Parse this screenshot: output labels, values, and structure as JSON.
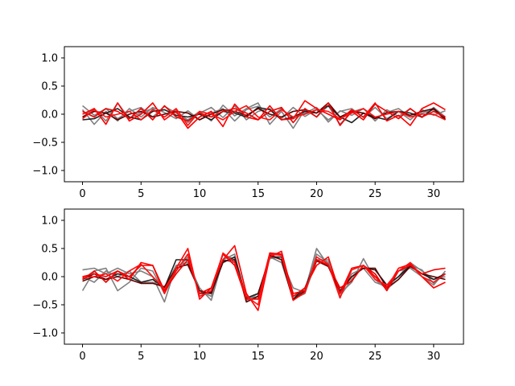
{
  "chart_data": [
    {
      "type": "line",
      "xlabel": "",
      "ylabel": "",
      "xlim": [
        -1.55,
        32.55
      ],
      "ylim": [
        -1.2,
        1.2
      ],
      "xticks": [
        0,
        5,
        10,
        15,
        20,
        25,
        30
      ],
      "yticks": [
        -1.0,
        -0.5,
        0.0,
        0.5,
        1.0
      ],
      "xtick_labels": [
        "0",
        "5",
        "10",
        "15",
        "20",
        "25",
        "30"
      ],
      "ytick_labels": [
        "−1.0",
        "−0.5",
        "0.0",
        "0.5",
        "1.0"
      ],
      "grid": false,
      "legend": "none",
      "x": [
        0,
        1,
        2,
        3,
        4,
        5,
        6,
        7,
        8,
        9,
        10,
        11,
        12,
        13,
        14,
        15,
        16,
        17,
        18,
        19,
        20,
        21,
        22,
        23,
        24,
        25,
        26,
        27,
        28,
        29,
        30,
        31
      ],
      "series": [
        {
          "color": "#808080",
          "values": [
            0.15,
            -0.02,
            0.1,
            -0.08,
            0.05,
            0.12,
            -0.05,
            0.14,
            0.02,
            -0.1,
            0.05,
            -0.12,
            0.16,
            -0.03,
            0.1,
            0.2,
            -0.18,
            0.05,
            -0.25,
            0.08,
            -0.05,
            0.15,
            -0.18,
            0.04,
            0.1,
            -0.12,
            0.08,
            -0.04,
            0.1,
            -0.06,
            0.12,
            -0.05
          ]
        },
        {
          "color": "#808080",
          "values": [
            -0.05,
            0.1,
            -0.12,
            0.2,
            -0.08,
            0.03,
            0.1,
            -0.05,
            0.08,
            -0.15,
            0.02,
            0.12,
            -0.06,
            0.15,
            -0.1,
            0.05,
            0.1,
            -0.08,
            0.12,
            -0.04,
            0.08,
            -0.1,
            0.05,
            0.1,
            -0.06,
            0.12,
            -0.08,
            0.05,
            -0.1,
            0.08,
            -0.02,
            0.06
          ]
        },
        {
          "color": "#808080",
          "values": [
            0.08,
            -0.18,
            0.05,
            -0.12,
            0.1,
            -0.05,
            0.12,
            0.03,
            -0.08,
            0.06,
            -0.1,
            0.02,
            0.1,
            -0.12,
            0.08,
            0.14,
            -0.05,
            0.1,
            -0.08,
            0.02,
            0.12,
            -0.14,
            0.06,
            -0.02,
            0.1,
            -0.08,
            0.03,
            0.1,
            -0.05,
            0.02,
            0.08,
            -0.1
          ]
        },
        {
          "color": "#202020",
          "values": [
            -0.1,
            -0.08,
            0.02,
            0.1,
            -0.05,
            -0.1,
            0.05,
            0.08,
            -0.02,
            -0.05,
            0.0,
            -0.1,
            0.05,
            0.02,
            -0.05,
            0.12,
            0.08,
            -0.1,
            -0.05,
            0.05,
            0.02,
            0.15,
            -0.05,
            -0.15,
            0.02,
            -0.05,
            -0.1,
            0.05,
            0.02,
            -0.05,
            0.1,
            -0.1
          ]
        },
        {
          "color": "#600000",
          "values": [
            -0.05,
            0.05,
            0.02,
            -0.1,
            0.0,
            0.05,
            -0.05,
            0.0,
            0.05,
            0.02,
            -0.1,
            0.0,
            0.08,
            0.05,
            -0.02,
            0.1,
            0.0,
            -0.05,
            0.05,
            0.08,
            0.02,
            0.2,
            -0.05,
            0.05,
            0.02,
            -0.08,
            0.03,
            0.05,
            -0.02,
            0.05,
            0.1,
            -0.08
          ]
        },
        {
          "color": "#ff0000",
          "values": [
            0.0,
            0.1,
            -0.18,
            0.2,
            -0.12,
            0.0,
            0.2,
            -0.1,
            0.05,
            -0.25,
            -0.05,
            0.05,
            -0.22,
            0.18,
            -0.05,
            -0.1,
            0.15,
            -0.1,
            -0.08,
            0.24,
            0.1,
            0.0,
            -0.1,
            0.08,
            -0.05,
            0.2,
            -0.12,
            -0.02,
            -0.2,
            0.1,
            0.2,
            0.08
          ]
        },
        {
          "color": "#ee0000",
          "values": [
            0.05,
            -0.05,
            0.1,
            0.05,
            -0.08,
            0.1,
            -0.1,
            0.15,
            -0.05,
            -0.12,
            0.02,
            -0.05,
            0.05,
            0.1,
            0.02,
            -0.1,
            0.05,
            0.12,
            -0.15,
            0.1,
            -0.05,
            0.2,
            -0.2,
            0.05,
            -0.1,
            0.18,
            0.05,
            -0.08,
            0.1,
            -0.05,
            0.05,
            -0.05
          ]
        },
        {
          "color": "#ff1010",
          "values": [
            -0.08,
            0.08,
            -0.05,
            0.0,
            0.05,
            -0.1,
            0.08,
            -0.05,
            0.1,
            -0.2,
            0.05,
            0.0,
            -0.1,
            0.05,
            0.15,
            -0.05,
            -0.1,
            0.08,
            -0.05,
            0.0,
            0.08,
            0.05,
            -0.08,
            0.02,
            0.1,
            -0.05,
            0.0,
            0.05,
            -0.05,
            0.0,
            0.0,
            -0.1
          ]
        }
      ]
    },
    {
      "type": "line",
      "xlabel": "",
      "ylabel": "",
      "xlim": [
        -1.55,
        32.55
      ],
      "ylim": [
        -1.2,
        1.2
      ],
      "xticks": [
        0,
        5,
        10,
        15,
        20,
        25,
        30
      ],
      "yticks": [
        -1.0,
        -0.5,
        0.0,
        0.5,
        1.0
      ],
      "xtick_labels": [
        "0",
        "5",
        "10",
        "15",
        "20",
        "25",
        "30"
      ],
      "ytick_labels": [
        "−1.0",
        "−0.5",
        "0.0",
        "0.5",
        "1.0"
      ],
      "grid": false,
      "legend": "none",
      "x": [
        0,
        1,
        2,
        3,
        4,
        5,
        6,
        7,
        8,
        9,
        10,
        11,
        12,
        13,
        14,
        15,
        16,
        17,
        18,
        19,
        20,
        21,
        22,
        23,
        24,
        25,
        26,
        27,
        28,
        29,
        30,
        31
      ],
      "series": [
        {
          "color": "#808080",
          "values": [
            0.12,
            0.15,
            0.05,
            0.15,
            0.05,
            0.1,
            0.0,
            -0.45,
            0.2,
            0.25,
            -0.2,
            -0.42,
            0.3,
            0.4,
            -0.42,
            -0.3,
            0.32,
            0.35,
            -0.35,
            -0.25,
            0.5,
            0.2,
            -0.3,
            -0.1,
            0.32,
            -0.05,
            -0.22,
            -0.05,
            0.2,
            0.12,
            -0.12,
            0.05
          ]
        },
        {
          "color": "#808080",
          "values": [
            -0.25,
            0.1,
            0.15,
            -0.25,
            -0.1,
            0.15,
            0.1,
            -0.3,
            0.1,
            0.35,
            -0.3,
            -0.3,
            0.4,
            0.3,
            -0.35,
            -0.4,
            0.4,
            0.3,
            -0.2,
            -0.28,
            0.4,
            0.25,
            -0.35,
            -0.05,
            0.2,
            0.0,
            -0.2,
            0.1,
            0.15,
            0.0,
            -0.15,
            0.1
          ]
        },
        {
          "color": "#808080",
          "values": [
            0.0,
            -0.1,
            0.1,
            0.0,
            0.1,
            -0.1,
            -0.1,
            -0.2,
            0.2,
            0.2,
            -0.25,
            -0.35,
            0.3,
            0.25,
            -0.4,
            -0.35,
            0.35,
            0.25,
            -0.4,
            -0.3,
            0.3,
            0.3,
            -0.3,
            0.05,
            0.15,
            -0.1,
            -0.18,
            0.0,
            0.25,
            0.1,
            -0.05,
            0.0
          ]
        },
        {
          "color": "#202020",
          "values": [
            -0.05,
            0.05,
            -0.05,
            0.05,
            0.0,
            -0.1,
            -0.05,
            -0.2,
            0.3,
            0.3,
            -0.3,
            -0.28,
            0.25,
            0.35,
            -0.38,
            -0.3,
            0.35,
            0.35,
            -0.4,
            -0.2,
            0.3,
            0.2,
            -0.25,
            0.0,
            0.15,
            0.12,
            -0.15,
            0.0,
            0.2,
            0.05,
            -0.05,
            0.05
          ]
        },
        {
          "color": "#600000",
          "values": [
            -0.08,
            0.0,
            -0.05,
            0.0,
            -0.05,
            -0.12,
            -0.12,
            -0.18,
            0.15,
            0.22,
            -0.25,
            -0.3,
            0.28,
            0.3,
            -0.45,
            -0.35,
            0.38,
            0.3,
            -0.42,
            -0.25,
            0.28,
            0.18,
            -0.28,
            0.0,
            0.15,
            0.15,
            -0.2,
            -0.05,
            0.18,
            0.05,
            0.0,
            -0.05
          ]
        },
        {
          "color": "#ff0000",
          "values": [
            0.0,
            0.05,
            0.0,
            0.1,
            -0.05,
            0.25,
            0.2,
            -0.3,
            0.15,
            0.5,
            -0.4,
            -0.2,
            0.3,
            0.55,
            -0.3,
            -0.6,
            0.35,
            0.45,
            -0.35,
            -0.2,
            0.2,
            0.35,
            -0.3,
            0.15,
            0.2,
            0.0,
            -0.2,
            0.15,
            0.22,
            0.0,
            -0.2,
            -0.1
          ]
        },
        {
          "color": "#ee0000",
          "values": [
            -0.05,
            0.1,
            -0.1,
            0.1,
            0.0,
            0.2,
            0.2,
            -0.25,
            0.05,
            0.3,
            -0.3,
            -0.2,
            0.4,
            0.2,
            -0.4,
            -0.4,
            0.42,
            0.4,
            -0.3,
            -0.25,
            0.3,
            0.2,
            -0.2,
            -0.08,
            0.2,
            0.05,
            -0.25,
            0.1,
            0.2,
            0.05,
            0.12,
            0.15
          ]
        },
        {
          "color": "#ff1010",
          "values": [
            -0.02,
            0.0,
            0.05,
            -0.08,
            0.1,
            0.22,
            0.0,
            -0.22,
            0.1,
            0.4,
            -0.35,
            -0.25,
            0.42,
            0.25,
            -0.35,
            -0.5,
            0.4,
            0.38,
            -0.42,
            -0.28,
            0.35,
            0.22,
            -0.38,
            0.12,
            0.2,
            -0.05,
            -0.15,
            0.1,
            0.25,
            0.0,
            -0.1,
            0.05
          ]
        }
      ]
    }
  ]
}
